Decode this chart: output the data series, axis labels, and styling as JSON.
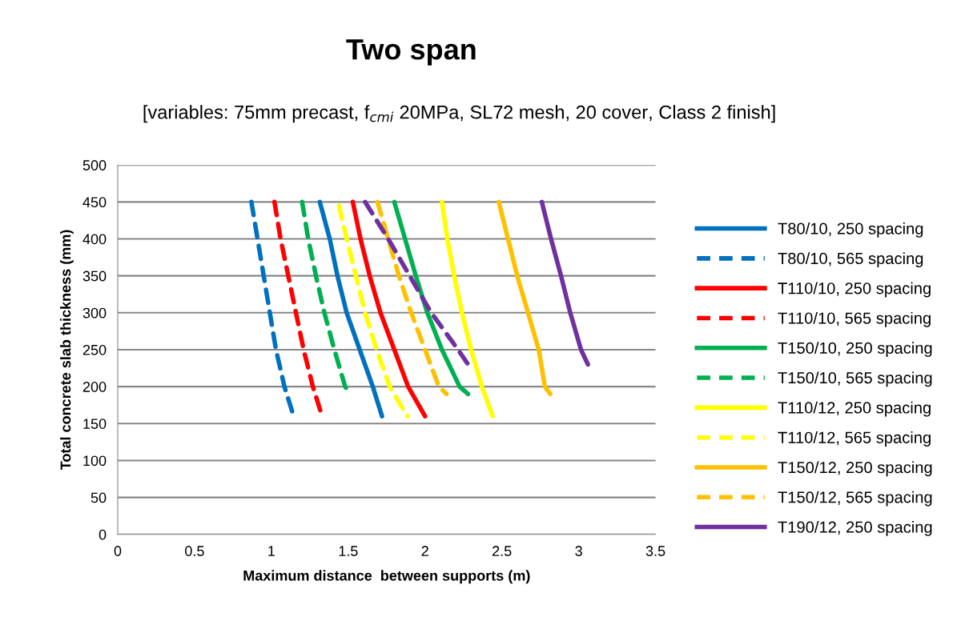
{
  "chart_data": {
    "type": "line",
    "title": "Two span",
    "subtitle": "[variables: 75mm precast, f$_{cmi}$ 20MPa, SL72 mesh, 20 cover, Class 2 finish]",
    "xlabel": "Maximum distance  between supports (m)",
    "ylabel": "Total concrete slab thickness (mm)",
    "xlim": [
      0,
      3.5
    ],
    "xticks": [
      0,
      0.5,
      1,
      1.5,
      2,
      2.5,
      3,
      3.5
    ],
    "ylim": [
      0,
      500
    ],
    "yticks": [
      0,
      50,
      100,
      150,
      200,
      250,
      300,
      350,
      400,
      450,
      500
    ],
    "grid": "y",
    "legend": "right",
    "marker": "none",
    "series": [
      {
        "name": "T80/10, 250 spacing",
        "color": "#0070c0",
        "line_style": "solid",
        "x": [
          1.315,
          1.38,
          1.43,
          1.49,
          1.575,
          1.66,
          1.72
        ],
        "values": [
          450,
          400,
          350,
          300,
          250,
          200,
          160
        ]
      },
      {
        "name": "T80/10, 565 spacing",
        "color": "#0070c0",
        "line_style": "dashed",
        "x": [
          0.87,
          0.91,
          0.95,
          0.99,
          1.03,
          1.085,
          1.145
        ],
        "values": [
          450,
          400,
          350,
          300,
          250,
          200,
          160
        ]
      },
      {
        "name": "T110/10, 250 spacing",
        "color": "#ff0000",
        "line_style": "solid",
        "x": [
          1.53,
          1.58,
          1.64,
          1.71,
          1.8,
          1.89,
          2.0
        ],
        "values": [
          450,
          400,
          350,
          300,
          250,
          200,
          160
        ]
      },
      {
        "name": "T110/10, 565 spacing",
        "color": "#ff0000",
        "line_style": "dashed",
        "x": [
          1.02,
          1.06,
          1.11,
          1.16,
          1.21,
          1.27,
          1.33
        ],
        "values": [
          450,
          400,
          350,
          300,
          250,
          200,
          160
        ]
      },
      {
        "name": "T150/10, 250 spacing",
        "color": "#00b050",
        "line_style": "solid",
        "x": [
          1.8,
          1.87,
          1.94,
          2.015,
          2.11,
          2.225,
          2.28
        ],
        "values": [
          450,
          400,
          350,
          300,
          250,
          200,
          190
        ]
      },
      {
        "name": "T150/10, 565 spacing",
        "color": "#00b050",
        "line_style": "dashed",
        "x": [
          1.2,
          1.24,
          1.29,
          1.345,
          1.41,
          1.48,
          1.51
        ],
        "values": [
          450,
          400,
          350,
          300,
          250,
          200,
          190
        ]
      },
      {
        "name": "T110/12, 250 spacing",
        "color": "#ffff00",
        "line_style": "solid",
        "x": [
          2.11,
          2.145,
          2.19,
          2.24,
          2.3,
          2.37,
          2.44
        ],
        "values": [
          450,
          400,
          350,
          300,
          250,
          200,
          160
        ]
      },
      {
        "name": "T110/12, 565 spacing",
        "color": "#ffff00",
        "line_style": "dashed",
        "x": [
          1.44,
          1.49,
          1.55,
          1.61,
          1.685,
          1.77,
          1.885
        ],
        "values": [
          445,
          400,
          350,
          300,
          250,
          200,
          160
        ]
      },
      {
        "name": "T150/12, 250 spacing",
        "color": "#ffc000",
        "line_style": "solid",
        "x": [
          2.48,
          2.54,
          2.6,
          2.67,
          2.74,
          2.78,
          2.815
        ],
        "values": [
          450,
          400,
          350,
          300,
          250,
          200,
          190
        ]
      },
      {
        "name": "T150/12, 565 spacing",
        "color": "#ffc000",
        "line_style": "dashed",
        "x": [
          1.69,
          1.76,
          1.83,
          1.91,
          2.0,
          2.09,
          2.14
        ],
        "values": [
          450,
          400,
          350,
          300,
          250,
          200,
          190
        ]
      },
      {
        "name": "T190/12, 250 spacing",
        "color": "#7030a0",
        "line_style": "solid",
        "x": [
          2.76,
          2.82,
          2.885,
          2.945,
          3.015,
          3.06
        ],
        "values": [
          450,
          400,
          350,
          300,
          250,
          230
        ]
      },
      {
        "name": null,
        "color": "#7030a0",
        "line_style": "dashed",
        "x": [
          1.61,
          1.76,
          1.9,
          2.04,
          2.215,
          2.28
        ],
        "values": [
          450,
          400,
          350,
          300,
          250,
          230
        ]
      }
    ]
  }
}
